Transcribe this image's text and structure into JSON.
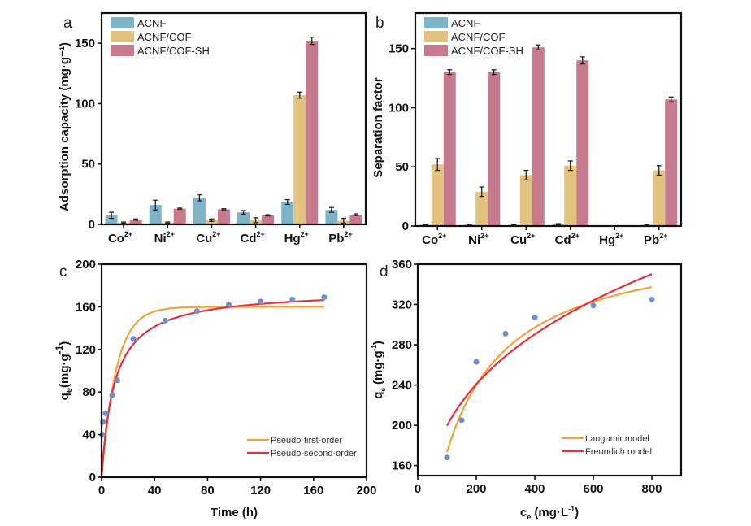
{
  "chart_data": [
    {
      "id": "a",
      "panel_label": "a",
      "type": "bar",
      "title": "",
      "xlabel": "",
      "ylabel": "Adsorption capacity (mg·g⁻¹)",
      "ylim": [
        0,
        175
      ],
      "yticks": [
        0,
        50,
        100,
        150
      ],
      "categories": [
        {
          "base": "Co",
          "sup": "2+"
        },
        {
          "base": "Ni",
          "sup": "2+"
        },
        {
          "base": "Cu",
          "sup": "2+"
        },
        {
          "base": "Cd",
          "sup": "2+"
        },
        {
          "base": "Hg",
          "sup": "2+"
        },
        {
          "base": "Pb",
          "sup": "2+"
        }
      ],
      "legend_position": "top-left",
      "series": [
        {
          "name": "ACNF",
          "color": "#7fb3c6",
          "values": [
            7.5,
            16,
            22,
            10,
            18.5,
            12
          ],
          "errors": [
            2.5,
            4,
            2.5,
            1.5,
            2,
            2
          ]
        },
        {
          "name": "ACNF/COF",
          "color": "#e2c27f",
          "values": [
            1.5,
            1.5,
            3.5,
            3.5,
            107,
            3
          ],
          "errors": [
            0.5,
            0.5,
            1,
            2,
            2.5,
            2
          ]
        },
        {
          "name": "ACNF/COF-SH",
          "color": "#c67a8e",
          "values": [
            4,
            13,
            12.5,
            7.5,
            152,
            8
          ],
          "errors": [
            0.5,
            0.5,
            0.5,
            0.5,
            3,
            0.7
          ]
        }
      ]
    },
    {
      "id": "b",
      "panel_label": "b",
      "type": "bar",
      "title": "",
      "xlabel": "",
      "ylabel": "Separation factor",
      "ylim": [
        0,
        180
      ],
      "yticks": [
        0,
        50,
        100,
        150
      ],
      "categories": [
        {
          "base": "Co",
          "sup": "2+"
        },
        {
          "base": "Ni",
          "sup": "2+"
        },
        {
          "base": "Cu",
          "sup": "2+"
        },
        {
          "base": "Cd",
          "sup": "2+"
        },
        {
          "base": "Hg",
          "sup": "2+"
        },
        {
          "base": "Pb",
          "sup": "2+"
        }
      ],
      "legend_position": "top-left",
      "series": [
        {
          "name": "ACNF",
          "color": "#7fb3c6",
          "values": [
            1,
            1,
            1,
            1.5,
            0,
            1
          ],
          "errors": [
            0.3,
            0.3,
            0.3,
            0.5,
            0,
            0.3
          ]
        },
        {
          "name": "ACNF/COF",
          "color": "#e2c27f",
          "values": [
            52,
            29,
            43,
            51,
            0,
            47
          ],
          "errors": [
            5,
            4,
            4,
            4,
            0,
            4
          ]
        },
        {
          "name": "ACNF/COF-SH",
          "color": "#c67a8e",
          "values": [
            130,
            130,
            151,
            140,
            0,
            107
          ],
          "errors": [
            2,
            2,
            2,
            3,
            0,
            2
          ]
        }
      ]
    },
    {
      "id": "c",
      "panel_label": "c",
      "type": "scatter",
      "title": "",
      "xlabel": "Time (h)",
      "ylabel": "qe (mg·g⁻¹)",
      "ylabel_parts": {
        "q": "q",
        "sub": "e",
        "unit": "(mg·g",
        "sup": "-1",
        "close": ")"
      },
      "xlim": [
        0,
        200
      ],
      "ylim": [
        0,
        200
      ],
      "xticks": [
        0,
        40,
        80,
        120,
        160,
        200
      ],
      "yticks": [
        0,
        40,
        80,
        120,
        160,
        200
      ],
      "legend_position": "bottom-right",
      "points": {
        "color": "#6f8fcc",
        "x": [
          0.5,
          1,
          3,
          8,
          12,
          24,
          48,
          72,
          96,
          120,
          144,
          168
        ],
        "y": [
          40,
          52,
          60,
          77,
          91,
          130,
          147,
          156,
          162,
          165,
          167,
          169
        ]
      },
      "series": [
        {
          "name": "Pseudo-first-order",
          "color": "#f5a03c",
          "model": "pfo",
          "qe": 160,
          "k": 0.09,
          "x_range": [
            0,
            168
          ]
        },
        {
          "name": "Pseudo-second-order",
          "color": "#e8303a",
          "model": "pso",
          "qe": 176,
          "k": 0.00058,
          "x_range": [
            0,
            168
          ]
        }
      ]
    },
    {
      "id": "d",
      "panel_label": "d",
      "type": "scatter",
      "title": "",
      "xlabel": "ce (mg·L⁻¹)",
      "xlabel_parts": {
        "c": "c",
        "sub": "e",
        "unit": " (mg·L",
        "sup": "-1",
        "close": ")"
      },
      "ylabel": "qe (mg·g⁻¹)",
      "ylabel_parts": {
        "q": "q",
        "sub": "e",
        "unit": " (mg·g",
        "sup": "-1",
        "close": ")"
      },
      "xlim": [
        0,
        900
      ],
      "ylim": [
        150,
        360
      ],
      "xticks": [
        0,
        200,
        400,
        600,
        800
      ],
      "yticks": [
        160,
        200,
        240,
        280,
        320,
        360
      ],
      "legend_position": "bottom-right",
      "points": {
        "color": "#6f8fcc",
        "x": [
          100,
          150,
          200,
          300,
          400,
          600,
          800
        ],
        "y": [
          168,
          205,
          263,
          291,
          307,
          319,
          325
        ]
      },
      "series": [
        {
          "name": "Langumir model",
          "color": "#f5a03c",
          "model": "langmuir",
          "qm": 390,
          "KL": 0.008,
          "x_range": [
            100,
            800
          ]
        },
        {
          "name": "Freundich model",
          "color": "#e8303a",
          "model": "freundlich",
          "KF": 57.5,
          "n": 3.7,
          "x_range": [
            100,
            800
          ]
        }
      ]
    }
  ]
}
